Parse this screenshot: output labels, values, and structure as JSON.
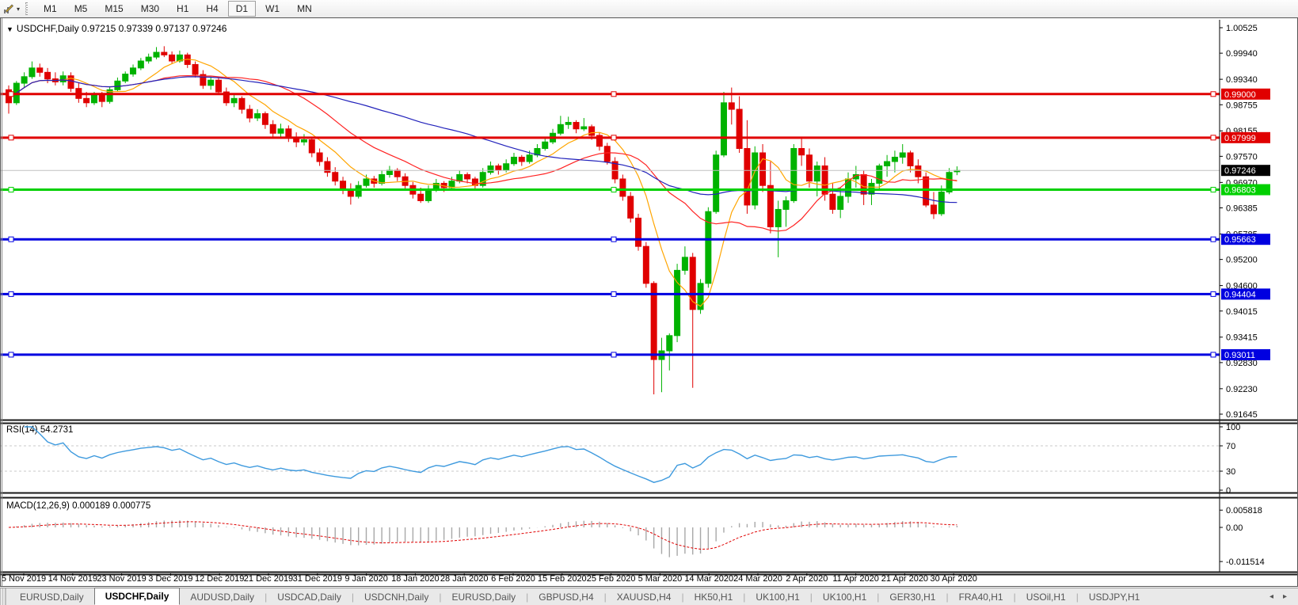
{
  "toolbar": {
    "timeframes": [
      "M1",
      "M5",
      "M15",
      "M30",
      "H1",
      "H4",
      "D1",
      "W1",
      "MN"
    ],
    "active_timeframe": "D1",
    "tools_icon": "chart-tools-icon",
    "caret": "▾"
  },
  "header": {
    "caret": "▼",
    "symbol": "USDCHF,Daily",
    "ohlc": "0.97215 0.97339 0.97137 0.97246",
    "open": "0.97215",
    "high": "0.97339",
    "low": "0.97137",
    "close": "0.97246"
  },
  "price_axis": {
    "ticks": [
      "1.00525",
      "0.99940",
      "0.99340",
      "0.98755",
      "0.98155",
      "0.97570",
      "0.96970",
      "0.96385",
      "0.95785",
      "0.95200",
      "0.94600",
      "0.94015",
      "0.93415",
      "0.92830",
      "0.92230",
      "0.91645"
    ],
    "tick_values": [
      1.00525,
      0.9994,
      0.9934,
      0.98755,
      0.98155,
      0.9757,
      0.9697,
      0.96385,
      0.95785,
      0.952,
      0.946,
      0.94015,
      0.93415,
      0.9283,
      0.9223,
      0.91645
    ]
  },
  "current_price": {
    "label": "0.97246",
    "value": 0.97246,
    "badge_color": "#000000",
    "line_color": "#c0c0c0"
  },
  "hlines": [
    {
      "label": "0.99000",
      "value": 0.99,
      "color": "#e00000"
    },
    {
      "label": "0.97999",
      "value": 0.97999,
      "color": "#e00000"
    },
    {
      "label": "0.96803",
      "value": 0.96803,
      "color": "#00d000"
    },
    {
      "label": "0.95663",
      "value": 0.95663,
      "color": "#0000e0"
    },
    {
      "label": "0.94404",
      "value": 0.94404,
      "color": "#0000e0"
    },
    {
      "label": "0.93011",
      "value": 0.93011,
      "color": "#0000e0"
    }
  ],
  "indicators": {
    "rsi": {
      "label": "RSI(14) 54.2731",
      "period": 14,
      "current": 54.2731,
      "axis_labels": [
        "100",
        "70",
        "30",
        "0"
      ],
      "levels": [
        70,
        30
      ],
      "line_color": "#3e9ade"
    },
    "macd": {
      "label": "MACD(12,26,9) 0.000189 0.000775",
      "fast": 12,
      "slow": 26,
      "signal": 9,
      "current_main": 0.000189,
      "current_signal": 0.000775,
      "axis_labels": [
        "0.005818",
        "0.00",
        "-0.011514"
      ],
      "axis_values": [
        0.005818,
        0.0,
        -0.011514
      ],
      "hist_color": "#a8a8a8",
      "signal_color": "#e00000"
    }
  },
  "chart_data": {
    "type": "candlestick",
    "symbol": "USDCHF",
    "timeframe": "D1",
    "bull_color": "#00b200",
    "bear_color": "#e00000",
    "moving_averages": [
      {
        "period": 8,
        "color": "#ffa500"
      },
      {
        "period": 20,
        "color": "#ff2222"
      },
      {
        "period": 45,
        "color": "#2222bb"
      }
    ],
    "x_labels": [
      "5 Nov 2019",
      "14 Nov 2019",
      "23 Nov 2019",
      "3 Dec 2019",
      "12 Dec 2019",
      "21 Dec 2019",
      "31 Dec 2019",
      "9 Jan 2020",
      "18 Jan 2020",
      "28 Jan 2020",
      "6 Feb 2020",
      "15 Feb 2020",
      "25 Feb 2020",
      "5 Mar 2020",
      "14 Mar 2020",
      "24 Mar 2020",
      "2 Apr 2020",
      "11 Apr 2020",
      "21 Apr 2020",
      "30 Apr 2020"
    ],
    "y_range": [
      0.91645,
      1.00525
    ],
    "candles": [
      [
        0.991,
        0.992,
        0.9855,
        0.988
      ],
      [
        0.988,
        0.993,
        0.9875,
        0.9925
      ],
      [
        0.9925,
        0.995,
        0.9915,
        0.994
      ],
      [
        0.994,
        0.9975,
        0.9935,
        0.996
      ],
      [
        0.996,
        0.997,
        0.994,
        0.995
      ],
      [
        0.995,
        0.996,
        0.9925,
        0.9935
      ],
      [
        0.9935,
        0.995,
        0.992,
        0.9928
      ],
      [
        0.9928,
        0.9952,
        0.992,
        0.9942
      ],
      [
        0.9942,
        0.995,
        0.9905,
        0.9913
      ],
      [
        0.9913,
        0.9925,
        0.988,
        0.989
      ],
      [
        0.989,
        0.9905,
        0.987,
        0.988
      ],
      [
        0.988,
        0.9905,
        0.9875,
        0.9898
      ],
      [
        0.9898,
        0.9905,
        0.987,
        0.9883
      ],
      [
        0.9883,
        0.9918,
        0.9878,
        0.991
      ],
      [
        0.991,
        0.9938,
        0.9905,
        0.993
      ],
      [
        0.993,
        0.9952,
        0.9925,
        0.9946
      ],
      [
        0.9946,
        0.9968,
        0.994,
        0.996
      ],
      [
        0.996,
        0.9983,
        0.9955,
        0.9976
      ],
      [
        0.9976,
        0.9993,
        0.997,
        0.9985
      ],
      [
        0.9985,
        1.0008,
        0.998,
        0.9996
      ],
      [
        0.9996,
        1.001,
        0.9985,
        0.999
      ],
      [
        0.999,
        0.9998,
        0.997,
        0.9976
      ],
      [
        0.9976,
        1.0,
        0.9972,
        0.999
      ],
      [
        0.999,
        0.9995,
        0.996,
        0.9968
      ],
      [
        0.9968,
        0.9975,
        0.9938,
        0.9945
      ],
      [
        0.9945,
        0.9955,
        0.9912,
        0.992
      ],
      [
        0.992,
        0.994,
        0.991,
        0.9932
      ],
      [
        0.9932,
        0.9938,
        0.9898,
        0.9905
      ],
      [
        0.9905,
        0.9915,
        0.9873,
        0.988
      ],
      [
        0.988,
        0.99,
        0.987,
        0.989
      ],
      [
        0.989,
        0.9895,
        0.9855,
        0.9865
      ],
      [
        0.9865,
        0.9875,
        0.9835,
        0.9845
      ],
      [
        0.9845,
        0.9865,
        0.9838,
        0.9855
      ],
      [
        0.9855,
        0.986,
        0.982,
        0.983
      ],
      [
        0.983,
        0.984,
        0.98,
        0.981
      ],
      [
        0.981,
        0.9832,
        0.9802,
        0.982
      ],
      [
        0.982,
        0.9828,
        0.979,
        0.98
      ],
      [
        0.98,
        0.9812,
        0.9778,
        0.979
      ],
      [
        0.979,
        0.9808,
        0.9782,
        0.9795
      ],
      [
        0.9795,
        0.98,
        0.9755,
        0.9765
      ],
      [
        0.9765,
        0.9775,
        0.9735,
        0.9745
      ],
      [
        0.9745,
        0.9755,
        0.971,
        0.972
      ],
      [
        0.972,
        0.9732,
        0.969,
        0.97
      ],
      [
        0.97,
        0.971,
        0.967,
        0.968
      ],
      [
        0.968,
        0.9695,
        0.9646,
        0.9665
      ],
      [
        0.9665,
        0.97,
        0.966,
        0.969
      ],
      [
        0.969,
        0.9715,
        0.9685,
        0.9705
      ],
      [
        0.9705,
        0.9712,
        0.9685,
        0.9695
      ],
      [
        0.9695,
        0.9725,
        0.969,
        0.9715
      ],
      [
        0.9715,
        0.9735,
        0.9708,
        0.9725
      ],
      [
        0.9725,
        0.973,
        0.97,
        0.971
      ],
      [
        0.971,
        0.9718,
        0.9682,
        0.969
      ],
      [
        0.969,
        0.9698,
        0.966,
        0.967
      ],
      [
        0.967,
        0.9685,
        0.965,
        0.9655
      ],
      [
        0.9655,
        0.969,
        0.965,
        0.968
      ],
      [
        0.968,
        0.9705,
        0.9675,
        0.9695
      ],
      [
        0.9695,
        0.97,
        0.9675,
        0.9685
      ],
      [
        0.9685,
        0.971,
        0.968,
        0.97
      ],
      [
        0.97,
        0.9725,
        0.9695,
        0.9715
      ],
      [
        0.9715,
        0.972,
        0.9695,
        0.9705
      ],
      [
        0.9705,
        0.971,
        0.9682,
        0.969
      ],
      [
        0.969,
        0.973,
        0.9685,
        0.972
      ],
      [
        0.972,
        0.9745,
        0.9715,
        0.9735
      ],
      [
        0.9735,
        0.974,
        0.9715,
        0.9725
      ],
      [
        0.9725,
        0.975,
        0.972,
        0.974
      ],
      [
        0.974,
        0.9765,
        0.9735,
        0.9755
      ],
      [
        0.9755,
        0.976,
        0.9735,
        0.9745
      ],
      [
        0.9745,
        0.977,
        0.974,
        0.976
      ],
      [
        0.976,
        0.9785,
        0.9755,
        0.9775
      ],
      [
        0.9775,
        0.98,
        0.977,
        0.979
      ],
      [
        0.979,
        0.982,
        0.9785,
        0.981
      ],
      [
        0.981,
        0.985,
        0.9805,
        0.983
      ],
      [
        0.983,
        0.9848,
        0.982,
        0.9835
      ],
      [
        0.9835,
        0.984,
        0.981,
        0.982
      ],
      [
        0.982,
        0.9845,
        0.9815,
        0.9825
      ],
      [
        0.9825,
        0.983,
        0.9795,
        0.9805
      ],
      [
        0.9805,
        0.9812,
        0.977,
        0.978
      ],
      [
        0.978,
        0.9788,
        0.9738,
        0.9745
      ],
      [
        0.9745,
        0.9755,
        0.9695,
        0.9705
      ],
      [
        0.9705,
        0.9715,
        0.9655,
        0.9665
      ],
      [
        0.9665,
        0.9675,
        0.9605,
        0.9615
      ],
      [
        0.9615,
        0.9625,
        0.954,
        0.955
      ],
      [
        0.955,
        0.956,
        0.9455,
        0.9465
      ],
      [
        0.9465,
        0.947,
        0.921,
        0.929
      ],
      [
        0.929,
        0.934,
        0.9215,
        0.931
      ],
      [
        0.931,
        0.935,
        0.9265,
        0.9345
      ],
      [
        0.9345,
        0.951,
        0.933,
        0.9495
      ],
      [
        0.9495,
        0.955,
        0.9485,
        0.9525
      ],
      [
        0.9525,
        0.9535,
        0.9225,
        0.9405
      ],
      [
        0.9405,
        0.9475,
        0.9395,
        0.9465
      ],
      [
        0.9465,
        0.964,
        0.9455,
        0.963
      ],
      [
        0.963,
        0.977,
        0.9625,
        0.976
      ],
      [
        0.976,
        0.9905,
        0.9755,
        0.988
      ],
      [
        0.988,
        0.9915,
        0.983,
        0.9865
      ],
      [
        0.9865,
        0.9895,
        0.9765,
        0.9775
      ],
      [
        0.9775,
        0.984,
        0.9625,
        0.9645
      ],
      [
        0.9645,
        0.978,
        0.9635,
        0.9765
      ],
      [
        0.9765,
        0.9785,
        0.9675,
        0.969
      ],
      [
        0.969,
        0.9745,
        0.958,
        0.9595
      ],
      [
        0.9595,
        0.9655,
        0.9525,
        0.9635
      ],
      [
        0.9635,
        0.9665,
        0.9595,
        0.9655
      ],
      [
        0.9655,
        0.9785,
        0.965,
        0.9775
      ],
      [
        0.9775,
        0.98,
        0.9735,
        0.976
      ],
      [
        0.976,
        0.9775,
        0.9685,
        0.97
      ],
      [
        0.97,
        0.9745,
        0.9665,
        0.9735
      ],
      [
        0.9735,
        0.9755,
        0.9655,
        0.967
      ],
      [
        0.967,
        0.9695,
        0.9625,
        0.9635
      ],
      [
        0.9635,
        0.9685,
        0.9615,
        0.9665
      ],
      [
        0.9665,
        0.972,
        0.965,
        0.9705
      ],
      [
        0.9705,
        0.9735,
        0.9685,
        0.9715
      ],
      [
        0.9715,
        0.9725,
        0.9645,
        0.967
      ],
      [
        0.967,
        0.9705,
        0.9645,
        0.9695
      ],
      [
        0.9695,
        0.974,
        0.968,
        0.9735
      ],
      [
        0.9735,
        0.976,
        0.971,
        0.9745
      ],
      [
        0.9745,
        0.977,
        0.972,
        0.9755
      ],
      [
        0.9755,
        0.9785,
        0.974,
        0.9765
      ],
      [
        0.9765,
        0.977,
        0.972,
        0.9735
      ],
      [
        0.9735,
        0.975,
        0.9695,
        0.971
      ],
      [
        0.971,
        0.972,
        0.964,
        0.9645
      ],
      [
        0.9645,
        0.9675,
        0.9613,
        0.9625
      ],
      [
        0.9625,
        0.969,
        0.962,
        0.9675
      ],
      [
        0.9675,
        0.973,
        0.967,
        0.972
      ],
      [
        0.97215,
        0.97339,
        0.97137,
        0.97246
      ]
    ]
  },
  "tabbar": {
    "tabs": [
      "EURUSD,Daily",
      "USDCHF,Daily",
      "AUDUSD,Daily",
      "USDCAD,Daily",
      "USDCNH,Daily",
      "EURUSD,Daily",
      "GBPUSD,H4",
      "XAUUSD,H4",
      "HK50,H1",
      "UK100,H1",
      "UK100,H1",
      "GER30,H1",
      "FRA40,H1",
      "USOil,H1",
      "USDJPY,H1"
    ],
    "active_index": 1,
    "scroll_left": "◂",
    "scroll_right": "▸"
  }
}
